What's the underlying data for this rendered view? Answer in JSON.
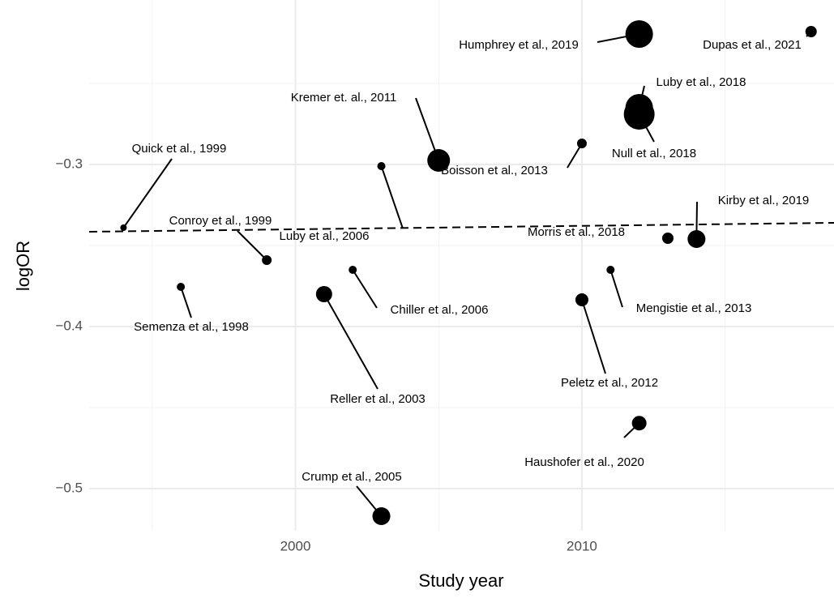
{
  "chart_data": {
    "type": "scatter",
    "x_label": "Study year",
    "y_label": "logOR",
    "labels": [
      "Semenza et al., 1998",
      "Quick et al., 1999",
      "Conroy et al., 1999",
      "Reller et al., 2003",
      "Chiller et al., 2006",
      "Crump et al., 2005",
      "Luby et al., 2006",
      "Kremer et. al., 2011",
      "Boisson et al., 2013",
      "Peletz et al., 2012",
      "Mengistie et al., 2013",
      "Haushofer et al., 2020",
      "Humphrey et al., 2019",
      "Luby et al., 2018",
      "Null et al., 2018",
      "Morris et al., 2018",
      "Kirby et al., 2019",
      "Dupas et al., 2021"
    ],
    "x": [
      1996,
      1994,
      1999,
      2001,
      2002,
      2003,
      2003,
      2005,
      2010,
      2010,
      2011,
      2012,
      2012,
      2012,
      2012,
      2013,
      2014,
      2018
    ],
    "y": [
      -0.3755,
      -0.339,
      -0.359,
      -0.38,
      -0.365,
      -0.517,
      -0.301,
      -0.2975,
      -0.287,
      -0.3835,
      -0.365,
      -0.4596,
      -0.2195,
      -0.265,
      -0.269,
      -0.3455,
      -0.346,
      -0.218
    ],
    "sizes": [
      5,
      4,
      6,
      10,
      5,
      11,
      5,
      14,
      6,
      8,
      5,
      9,
      17,
      17,
      19,
      7,
      11,
      7
    ],
    "color": "#000000",
    "trend_line": {
      "x": [
        1992.8,
        2018.8
      ],
      "y": [
        -0.3415,
        -0.336
      ]
    },
    "xlim": [
      1992.8,
      2018.8
    ],
    "ylim": [
      -0.526,
      -0.1985
    ],
    "xticks": [
      2000,
      2010
    ],
    "yticks": [
      {
        "value": -0.5,
        "label": "−0.5"
      },
      {
        "value": -0.4,
        "label": "−0.4"
      },
      {
        "value": -0.3,
        "label": "−0.3"
      }
    ],
    "x_minor_grid": [
      1995,
      2005,
      2015
    ],
    "y_minor_grid": [
      -0.45,
      -0.35,
      -0.25
    ],
    "grid": true
  }
}
